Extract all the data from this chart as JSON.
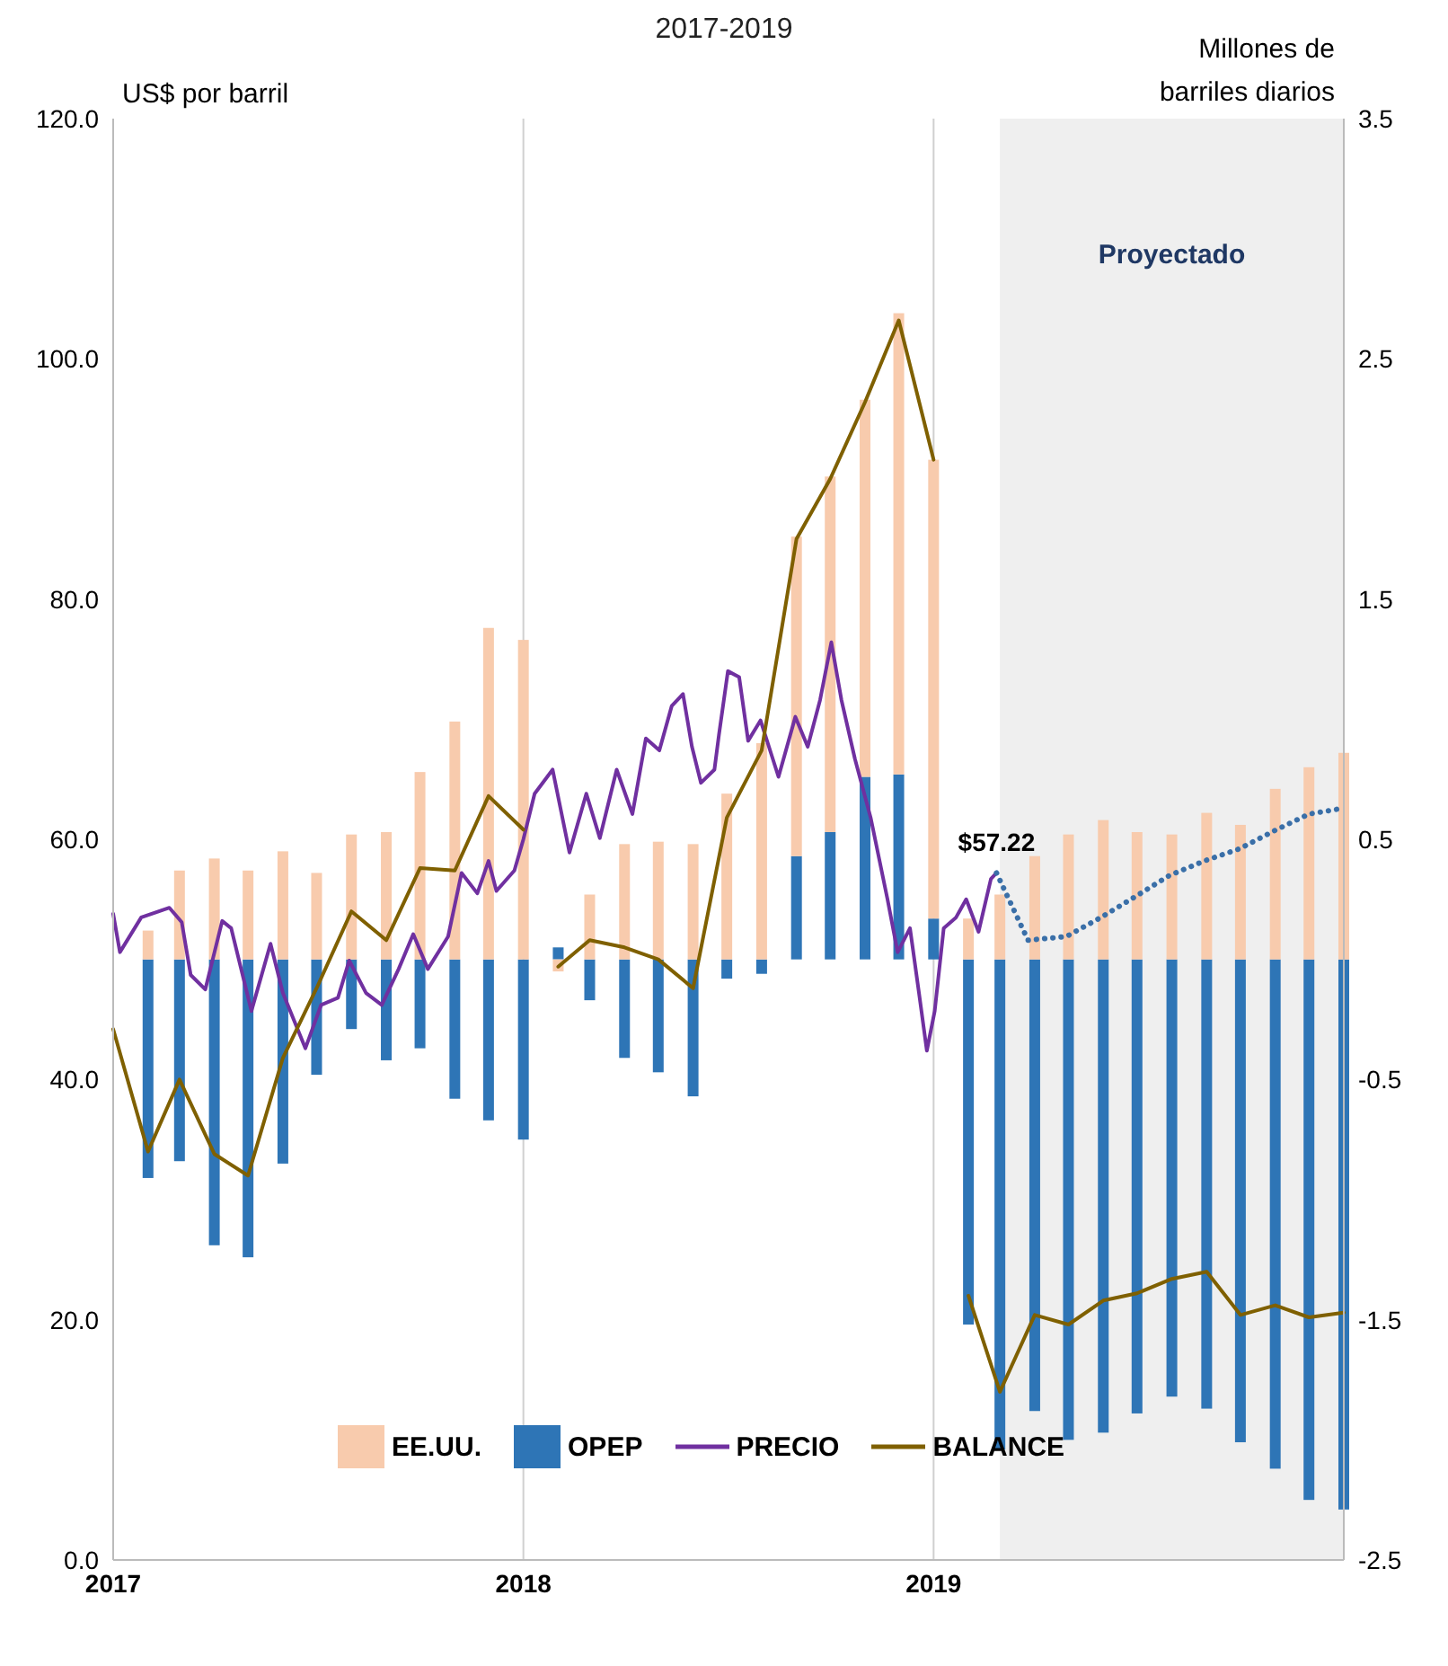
{
  "chart_data": {
    "type": "bar",
    "title": "2017-2019",
    "ylabel": "US$ por barril",
    "y2label": "Millones de barriles diarios",
    "xlim": [
      "2017",
      "2020"
    ],
    "xticks": [
      "2017",
      "2018",
      "2019"
    ],
    "ylim": [
      0,
      120
    ],
    "yticks": [
      {
        "value": 0,
        "label": "0.0"
      },
      {
        "value": 20,
        "label": "20.0"
      },
      {
        "value": 40,
        "label": "40.0"
      },
      {
        "value": 60,
        "label": "60.0"
      },
      {
        "value": 80,
        "label": "80.0"
      },
      {
        "value": 100,
        "label": "100.0"
      },
      {
        "value": 120,
        "label": "120.0"
      }
    ],
    "y2lim": [
      -2.5,
      3.5
    ],
    "y2ticks": [
      -2.5,
      -1.5,
      -0.5,
      0.5,
      1.5,
      2.5,
      3.5
    ],
    "grid": "x",
    "legend": "bottom",
    "stacked": true,
    "bands": [
      {
        "axis": "x",
        "from": "2019-03",
        "to": "2020",
        "label": "Proyectado",
        "color": "#efefef"
      }
    ],
    "annotations": [
      {
        "text": "$57.22",
        "x": "2019-02-26",
        "y": 57.2
      }
    ],
    "series": [
      {
        "name": "OPEP",
        "axis": "y2",
        "color": "#2e75b6",
        "x": [
          "2017-02",
          "2017-03",
          "2017-04",
          "2017-05",
          "2017-06",
          "2017-07",
          "2017-08",
          "2017-09",
          "2017-10",
          "2017-11",
          "2017-12",
          "2018-01",
          "2018-02",
          "2018-03",
          "2018-04",
          "2018-05",
          "2018-06",
          "2018-07",
          "2018-08",
          "2018-09",
          "2018-10",
          "2018-11",
          "2018-12",
          "2019-01",
          "2019-02",
          "2019-03",
          "2019-04",
          "2019-05",
          "2019-06",
          "2019-07",
          "2019-08",
          "2019-09",
          "2019-10",
          "2019-11",
          "2019-12",
          "2020-01"
        ],
        "values": [
          -0.91,
          -0.84,
          -1.19,
          -1.24,
          -0.85,
          -0.48,
          -0.29,
          -0.42,
          -0.37,
          -0.58,
          -0.67,
          -0.75,
          0.05,
          -0.17,
          -0.41,
          -0.47,
          -0.57,
          -0.08,
          -0.06,
          0.43,
          0.53,
          0.76,
          0.77,
          0.17,
          -1.52,
          -2.04,
          -1.88,
          -2.0,
          -1.97,
          -1.89,
          -1.82,
          -1.87,
          -2.01,
          -2.12,
          -2.25,
          -2.29
        ]
      },
      {
        "name": "EE.UU.",
        "axis": "y2",
        "color": "#f8cbad",
        "x": [
          "2017-02",
          "2017-03",
          "2017-04",
          "2017-05",
          "2017-06",
          "2017-07",
          "2017-08",
          "2017-09",
          "2017-10",
          "2017-11",
          "2017-12",
          "2018-01",
          "2018-02",
          "2018-03",
          "2018-04",
          "2018-05",
          "2018-06",
          "2018-07",
          "2018-08",
          "2018-09",
          "2018-10",
          "2018-11",
          "2018-12",
          "2019-01",
          "2019-02",
          "2019-03",
          "2019-04",
          "2019-05",
          "2019-06",
          "2019-07",
          "2019-08",
          "2019-09",
          "2019-10",
          "2019-11",
          "2019-12",
          "2020-01"
        ],
        "values": [
          0.12,
          0.37,
          0.42,
          0.37,
          0.45,
          0.36,
          0.52,
          0.53,
          0.78,
          0.99,
          1.38,
          1.33,
          -0.05,
          0.27,
          0.48,
          0.49,
          0.48,
          0.69,
          0.9,
          1.33,
          1.48,
          1.57,
          1.92,
          1.91,
          0.17,
          0.27,
          0.43,
          0.52,
          0.58,
          0.53,
          0.52,
          0.61,
          0.56,
          0.71,
          0.8,
          0.86
        ]
      },
      {
        "name": "PRECIO",
        "type": "line",
        "color": "#7030a0",
        "x": [
          "2017-01-01",
          "2017-01-07",
          "2017-01-26",
          "2017-02-20",
          "2017-03-03",
          "2017-03-11",
          "2017-03-24",
          "2017-04-08",
          "2017-04-16",
          "2017-05-04",
          "2017-05-21",
          "2017-06-01",
          "2017-06-21",
          "2017-07-05",
          "2017-07-20",
          "2017-07-30",
          "2017-08-14",
          "2017-08-28",
          "2017-09-12",
          "2017-09-25",
          "2017-10-08",
          "2017-10-26",
          "2017-11-07",
          "2017-11-21",
          "2017-12-01",
          "2017-12-08",
          "2017-12-24",
          "2018-01-01",
          "2018-01-11",
          "2018-01-27",
          "2018-02-11",
          "2018-02-26",
          "2018-03-10",
          "2018-03-25",
          "2018-04-08",
          "2018-04-20",
          "2018-05-02",
          "2018-05-13",
          "2018-05-23",
          "2018-05-31",
          "2018-06-08",
          "2018-06-20",
          "2018-06-24",
          "2018-07-02",
          "2018-07-12",
          "2018-07-20",
          "2018-07-31",
          "2018-08-16",
          "2018-08-31",
          "2018-09-11",
          "2018-09-22",
          "2018-10-02",
          "2018-10-11",
          "2018-10-23",
          "2018-11-06",
          "2018-11-21",
          "2018-11-30",
          "2018-12-11",
          "2018-12-19",
          "2018-12-26",
          "2019-01-02",
          "2019-01-10",
          "2019-01-21",
          "2019-01-30",
          "2019-02-10",
          "2019-02-21",
          "2019-02-26"
        ],
        "values": [
          53.8,
          50.6,
          53.5,
          54.3,
          53.1,
          48.7,
          47.5,
          53.2,
          52.6,
          45.7,
          51.3,
          47.2,
          42.6,
          46.2,
          46.8,
          49.9,
          47.2,
          46.2,
          49.2,
          52.1,
          49.2,
          51.9,
          57.2,
          55.5,
          58.2,
          55.7,
          57.4,
          60.0,
          63.8,
          65.8,
          58.9,
          63.8,
          60.1,
          65.8,
          62.1,
          68.4,
          67.4,
          71.1,
          72.1,
          67.7,
          64.7,
          65.8,
          68.7,
          74.0,
          73.5,
          68.2,
          69.9,
          65.2,
          70.2,
          67.7,
          71.6,
          76.4,
          71.6,
          66.7,
          61.8,
          55.0,
          50.6,
          52.6,
          47.2,
          42.4,
          45.7,
          52.6,
          53.5,
          55.0,
          52.3,
          56.7,
          57.2
        ]
      },
      {
        "type": "line",
        "line_style": "dotted",
        "color": "#3a6fa8",
        "x": [
          "2019-02-26",
          "2019-03-26",
          "2019-04-29",
          "2019-05-30",
          "2019-06-29",
          "2019-07-30",
          "2019-08-30",
          "2019-09-30",
          "2019-10-31",
          "2019-12-01",
          "2020-01-01"
        ],
        "values": [
          57.2,
          51.6,
          51.9,
          53.5,
          55.2,
          57.0,
          58.2,
          59.2,
          60.7,
          62.1,
          62.6
        ]
      },
      {
        "name": "BALANCE",
        "type": "line",
        "axis": "y2",
        "color": "#7f6000",
        "x": [
          "2017-01",
          "2017-02",
          "2017-03",
          "2017-04",
          "2017-05",
          "2017-06",
          "2017-07",
          "2017-08",
          "2017-09",
          "2017-10",
          "2017-11",
          "2017-12",
          "2018-01"
        ],
        "values": [
          -0.29,
          -0.8,
          -0.5,
          -0.81,
          -0.9,
          -0.41,
          -0.12,
          0.2,
          0.08,
          0.38,
          0.37,
          0.68,
          0.54
        ]
      },
      {
        "type": "line",
        "axis": "y2",
        "color": "#7f6000",
        "x": [
          "2018-02",
          "2018-03",
          "2018-04",
          "2018-05",
          "2018-06",
          "2018-07",
          "2018-08",
          "2018-09",
          "2018-10",
          "2018-11",
          "2018-12",
          "2019-01"
        ],
        "values": [
          -0.03,
          0.08,
          0.05,
          0.0,
          -0.12,
          0.59,
          0.87,
          1.75,
          2.0,
          2.32,
          2.66,
          2.08
        ]
      },
      {
        "type": "line",
        "axis": "y2",
        "color": "#7f6000",
        "x": [
          "2019-02",
          "2019-03",
          "2019-04",
          "2019-05",
          "2019-06",
          "2019-07",
          "2019-08",
          "2019-09",
          "2019-10",
          "2019-11",
          "2019-12",
          "2020-01"
        ],
        "values": [
          -1.4,
          -1.8,
          -1.48,
          -1.52,
          -1.42,
          -1.39,
          -1.33,
          -1.3,
          -1.48,
          -1.44,
          -1.49,
          -1.47
        ]
      }
    ]
  }
}
